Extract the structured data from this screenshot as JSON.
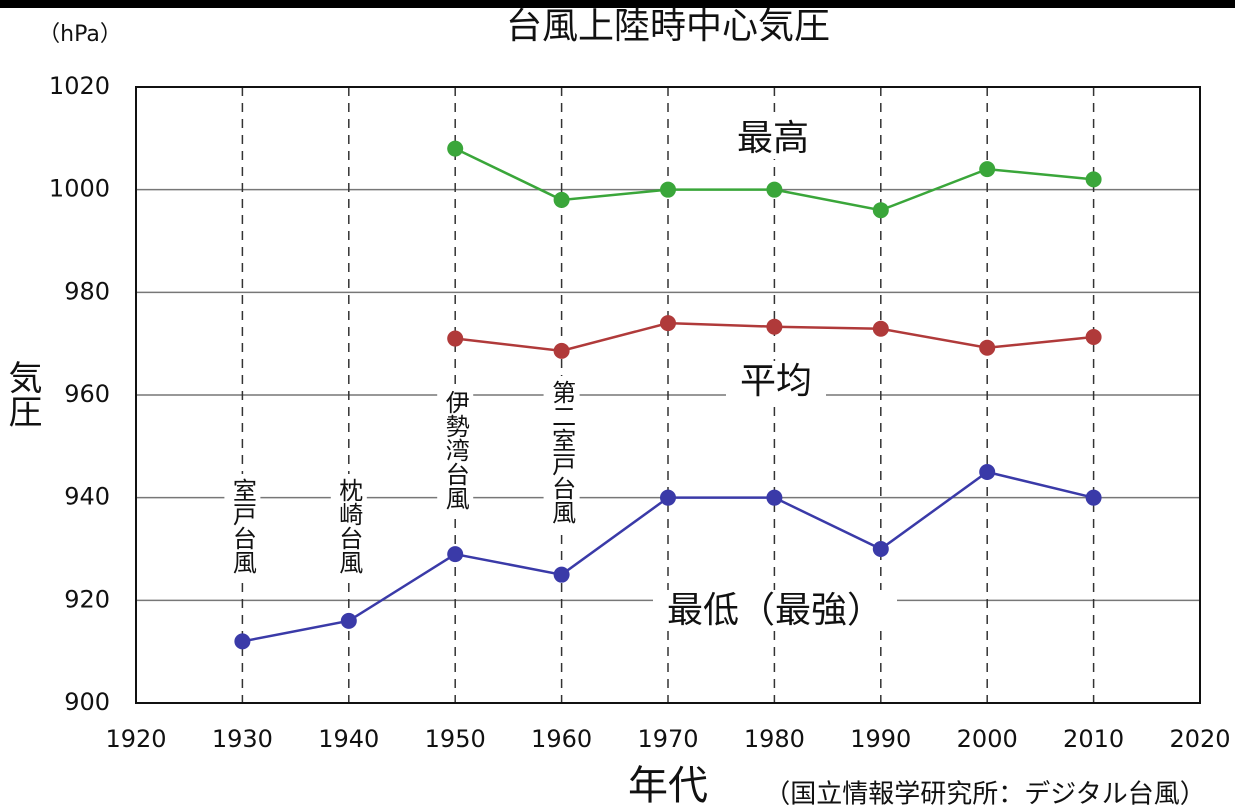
{
  "chart_data": {
    "type": "line",
    "title": "台風上陸時中心気圧",
    "y_unit": "（hPa）",
    "y_label": "気圧",
    "x_label": "年代",
    "source": "（国立情報学研究所：デジタル台風）",
    "x": [
      1930,
      1940,
      1950,
      1960,
      1970,
      1980,
      1990,
      2000,
      2010
    ],
    "series": [
      {
        "name": "最高",
        "color": "#3aa63a",
        "values": [
          null,
          null,
          1008,
          998,
          1000,
          1000,
          996,
          1004,
          1002
        ]
      },
      {
        "name": "平均",
        "color": "#b03a3a",
        "values": [
          null,
          null,
          971,
          968.6,
          974,
          973.3,
          972.9,
          969.2,
          971.3
        ]
      },
      {
        "name": "最低（最強）",
        "color": "#3a3aa8",
        "values": [
          912,
          916,
          929,
          925,
          940,
          940,
          930,
          945,
          940
        ]
      }
    ],
    "annotations": [
      "室戸台風",
      "枕崎台風",
      "伊勢湾台風",
      "第二室戸台風"
    ],
    "xlim": [
      1920,
      2020
    ],
    "xticks": [
      1920,
      1930,
      1940,
      1950,
      1960,
      1970,
      1980,
      1990,
      2000,
      2010,
      2020
    ],
    "ylim": [
      900,
      1020
    ],
    "yticks": [
      900,
      920,
      940,
      960,
      980,
      1000,
      1020
    ],
    "grid": true
  }
}
